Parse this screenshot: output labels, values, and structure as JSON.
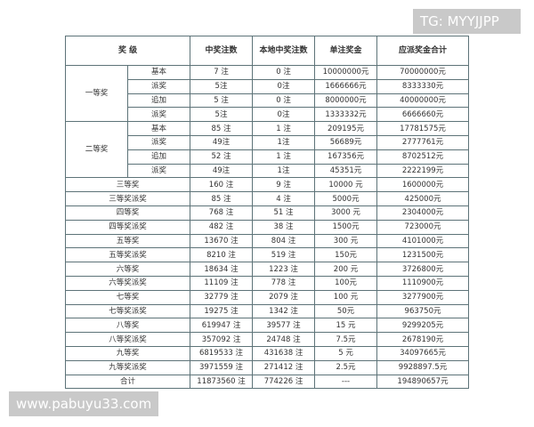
{
  "header": [
    "奖 级",
    "中奖注数",
    "本地中奖注数",
    "单注奖金",
    "应派奖金合计"
  ],
  "groups": [
    {
      "name": "一等奖",
      "rows": [
        [
          "基本",
          "7 注",
          "0 注",
          "10000000元",
          "70000000元"
        ],
        [
          "派奖",
          "5注",
          "0注",
          "1666666元",
          "8333330元"
        ],
        [
          "追加",
          "5 注",
          "0 注",
          "8000000元",
          "40000000元"
        ],
        [
          "派奖",
          "5注",
          "0注",
          "1333332元",
          "6666660元"
        ]
      ]
    },
    {
      "name": "二等奖",
      "rows": [
        [
          "基本",
          "85 注",
          "1 注",
          "209195元",
          "17781575元"
        ],
        [
          "派奖",
          "49注",
          "1注",
          "56689元",
          "2777761元"
        ],
        [
          "追加",
          "52 注",
          "1 注",
          "167356元",
          "8702512元"
        ],
        [
          "派奖",
          "49注",
          "1注",
          "45351元",
          "2222199元"
        ]
      ]
    }
  ],
  "rows": [
    [
      "三等奖",
      "160 注",
      "9 注",
      "10000 元",
      "1600000元"
    ],
    [
      "三等奖派奖",
      "85 注",
      "4 注",
      "5000元",
      "425000元"
    ],
    [
      "四等奖",
      "768 注",
      "51 注",
      "3000 元",
      "2304000元"
    ],
    [
      "四等奖派奖",
      "482 注",
      "38 注",
      "1500元",
      "723000元"
    ],
    [
      "五等奖",
      "13670 注",
      "804 注",
      "300 元",
      "4101000元"
    ],
    [
      "五等奖派奖",
      "8210 注",
      "519 注",
      "150元",
      "1231500元"
    ],
    [
      "六等奖",
      "18634 注",
      "1223 注",
      "200 元",
      "3726800元"
    ],
    [
      "六等奖派奖",
      "11109 注",
      "778 注",
      "100元",
      "1110900元"
    ],
    [
      "七等奖",
      "32779 注",
      "2079 注",
      "100 元",
      "3277900元"
    ],
    [
      "七等奖派奖",
      "19275 注",
      "1342 注",
      "50元",
      "963750元"
    ],
    [
      "八等奖",
      "619947 注",
      "39577 注",
      "15 元",
      "9299205元"
    ],
    [
      "八等奖派奖",
      "357092 注",
      "24748 注",
      "7.5元",
      "2678190元"
    ],
    [
      "九等奖",
      "6819533 注",
      "431638 注",
      "5 元",
      "34097665元"
    ],
    [
      "九等奖派奖",
      "3971559 注",
      "271412 注",
      "2.5元",
      "9928897.5元"
    ],
    [
      "合计",
      "11873560 注",
      "774226 注",
      "---",
      "194890657元"
    ]
  ],
  "watermarks": {
    "top": "TG: MYYJJPP",
    "bottom": "www.pabuyu33.com"
  }
}
